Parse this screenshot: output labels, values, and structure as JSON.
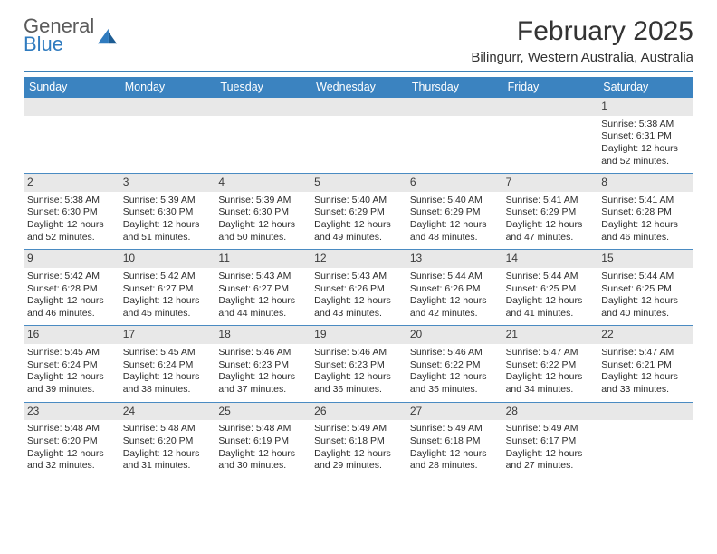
{
  "logo": {
    "general": "General",
    "blue": "Blue"
  },
  "title": "February 2025",
  "subtitle": "Bilingurr, Western Australia, Australia",
  "colors": {
    "header_bar": "#3b83c0",
    "daynum_bg": "#e8e8e8",
    "row_divider": "#4a8bc2",
    "hr": "#3b7fb6",
    "text": "#2b2b2b",
    "title_text": "#333333",
    "logo_gray": "#5a5a5a",
    "logo_blue": "#2f7bbf"
  },
  "dayNames": [
    "Sunday",
    "Monday",
    "Tuesday",
    "Wednesday",
    "Thursday",
    "Friday",
    "Saturday"
  ],
  "firstDayOffset": 6,
  "daysInMonth": 28,
  "days": [
    {
      "n": 1,
      "sr": "5:38 AM",
      "ss": "6:31 PM",
      "dl": "12 hours and 52 minutes."
    },
    {
      "n": 2,
      "sr": "5:38 AM",
      "ss": "6:30 PM",
      "dl": "12 hours and 52 minutes."
    },
    {
      "n": 3,
      "sr": "5:39 AM",
      "ss": "6:30 PM",
      "dl": "12 hours and 51 minutes."
    },
    {
      "n": 4,
      "sr": "5:39 AM",
      "ss": "6:30 PM",
      "dl": "12 hours and 50 minutes."
    },
    {
      "n": 5,
      "sr": "5:40 AM",
      "ss": "6:29 PM",
      "dl": "12 hours and 49 minutes."
    },
    {
      "n": 6,
      "sr": "5:40 AM",
      "ss": "6:29 PM",
      "dl": "12 hours and 48 minutes."
    },
    {
      "n": 7,
      "sr": "5:41 AM",
      "ss": "6:29 PM",
      "dl": "12 hours and 47 minutes."
    },
    {
      "n": 8,
      "sr": "5:41 AM",
      "ss": "6:28 PM",
      "dl": "12 hours and 46 minutes."
    },
    {
      "n": 9,
      "sr": "5:42 AM",
      "ss": "6:28 PM",
      "dl": "12 hours and 46 minutes."
    },
    {
      "n": 10,
      "sr": "5:42 AM",
      "ss": "6:27 PM",
      "dl": "12 hours and 45 minutes."
    },
    {
      "n": 11,
      "sr": "5:43 AM",
      "ss": "6:27 PM",
      "dl": "12 hours and 44 minutes."
    },
    {
      "n": 12,
      "sr": "5:43 AM",
      "ss": "6:26 PM",
      "dl": "12 hours and 43 minutes."
    },
    {
      "n": 13,
      "sr": "5:44 AM",
      "ss": "6:26 PM",
      "dl": "12 hours and 42 minutes."
    },
    {
      "n": 14,
      "sr": "5:44 AM",
      "ss": "6:25 PM",
      "dl": "12 hours and 41 minutes."
    },
    {
      "n": 15,
      "sr": "5:44 AM",
      "ss": "6:25 PM",
      "dl": "12 hours and 40 minutes."
    },
    {
      "n": 16,
      "sr": "5:45 AM",
      "ss": "6:24 PM",
      "dl": "12 hours and 39 minutes."
    },
    {
      "n": 17,
      "sr": "5:45 AM",
      "ss": "6:24 PM",
      "dl": "12 hours and 38 minutes."
    },
    {
      "n": 18,
      "sr": "5:46 AM",
      "ss": "6:23 PM",
      "dl": "12 hours and 37 minutes."
    },
    {
      "n": 19,
      "sr": "5:46 AM",
      "ss": "6:23 PM",
      "dl": "12 hours and 36 minutes."
    },
    {
      "n": 20,
      "sr": "5:46 AM",
      "ss": "6:22 PM",
      "dl": "12 hours and 35 minutes."
    },
    {
      "n": 21,
      "sr": "5:47 AM",
      "ss": "6:22 PM",
      "dl": "12 hours and 34 minutes."
    },
    {
      "n": 22,
      "sr": "5:47 AM",
      "ss": "6:21 PM",
      "dl": "12 hours and 33 minutes."
    },
    {
      "n": 23,
      "sr": "5:48 AM",
      "ss": "6:20 PM",
      "dl": "12 hours and 32 minutes."
    },
    {
      "n": 24,
      "sr": "5:48 AM",
      "ss": "6:20 PM",
      "dl": "12 hours and 31 minutes."
    },
    {
      "n": 25,
      "sr": "5:48 AM",
      "ss": "6:19 PM",
      "dl": "12 hours and 30 minutes."
    },
    {
      "n": 26,
      "sr": "5:49 AM",
      "ss": "6:18 PM",
      "dl": "12 hours and 29 minutes."
    },
    {
      "n": 27,
      "sr": "5:49 AM",
      "ss": "6:18 PM",
      "dl": "12 hours and 28 minutes."
    },
    {
      "n": 28,
      "sr": "5:49 AM",
      "ss": "6:17 PM",
      "dl": "12 hours and 27 minutes."
    }
  ],
  "labels": {
    "sunrise": "Sunrise: ",
    "sunset": "Sunset: ",
    "daylight": "Daylight: "
  }
}
